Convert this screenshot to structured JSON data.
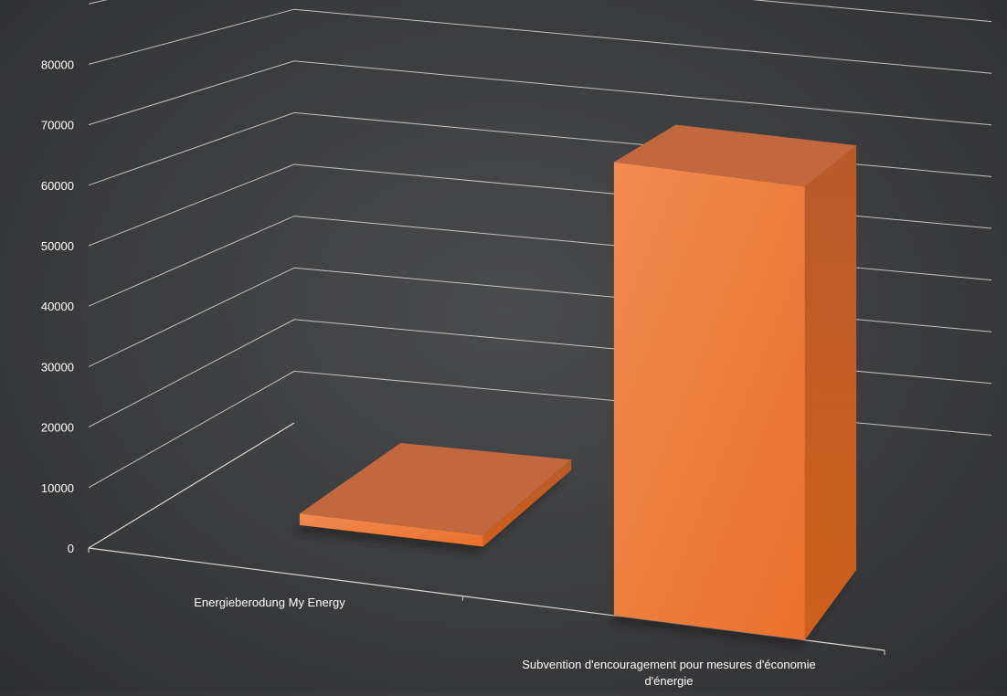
{
  "chart_data": {
    "type": "bar",
    "style": "3d-perspective",
    "categories": [
      "Energieberodung My Energy",
      "Subvention d'encouragement pour mesures d'économie d'énergie"
    ],
    "category_label_lines": [
      [
        "Energieberodung My Energy"
      ],
      [
        "Subvention d'encouragement pour mesures d'économie",
        "d'énergie"
      ]
    ],
    "series": [
      {
        "values": [
          2000,
          75000
        ]
      }
    ],
    "yticks": [
      0,
      10000,
      20000,
      30000,
      40000,
      50000,
      60000,
      70000,
      80000
    ],
    "ylim": [
      0,
      90000
    ],
    "grid": true,
    "legend": "none",
    "title": "",
    "xlabel": "",
    "ylabel": "",
    "colors": {
      "background": "#3b3c3e",
      "gridline": "#d9d9d9",
      "axis_text": "#ffffff",
      "bar_front": "#ef7d3a",
      "bar_top": "#c2683f",
      "bar_side": "#c95a1c"
    }
  }
}
